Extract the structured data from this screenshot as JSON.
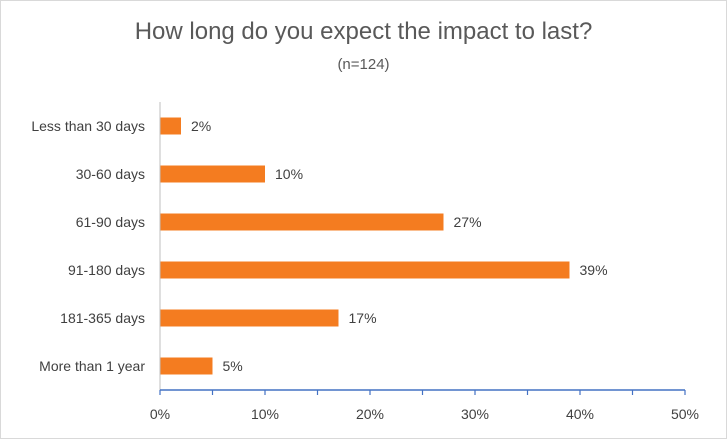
{
  "chart_data": {
    "type": "bar",
    "orientation": "horizontal",
    "title": "How long do you expect the impact to last?",
    "subtitle": "(n=124)",
    "categories": [
      "Less than 30 days",
      "30-60 days",
      "61-90 days",
      "91-180 days",
      "181-365 days",
      "More than 1 year"
    ],
    "values": [
      2,
      10,
      27,
      39,
      17,
      5
    ],
    "data_labels": [
      "2%",
      "10%",
      "27%",
      "39%",
      "17%",
      "5%"
    ],
    "x_ticks": [
      0,
      10,
      20,
      30,
      40,
      50
    ],
    "x_tick_labels": [
      "0%",
      "10%",
      "20%",
      "30%",
      "40%",
      "50%"
    ],
    "xlim": [
      0,
      50
    ],
    "grid": false,
    "legend": "none",
    "bar_color": "#f47c20",
    "axis_color": "#4472c4"
  }
}
